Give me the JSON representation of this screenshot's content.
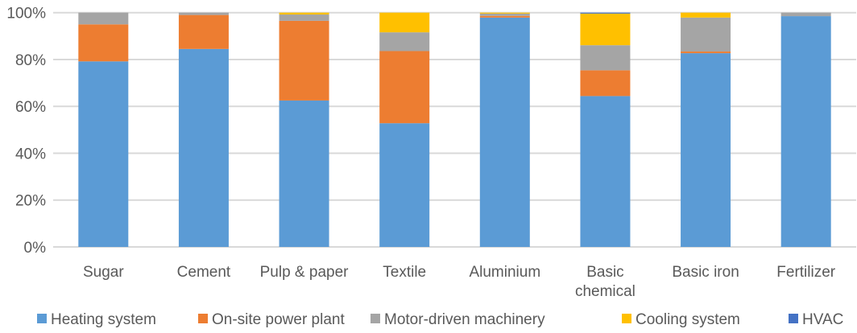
{
  "chart_data": {
    "type": "bar",
    "stacked": true,
    "percent": true,
    "categories": [
      "Sugar",
      "Cement",
      "Pulp & paper",
      "Textile",
      "Aluminium",
      "Basic chemical",
      "Basic iron",
      "Fertilizer"
    ],
    "category_lines": [
      [
        "Sugar"
      ],
      [
        "Cement"
      ],
      [
        "Pulp & paper"
      ],
      [
        "Textile"
      ],
      [
        "Aluminium"
      ],
      [
        "Basic",
        "chemical"
      ],
      [
        "Basic iron"
      ],
      [
        "Fertilizer"
      ]
    ],
    "series": [
      {
        "name": "Heating system",
        "color": "#5B9BD5",
        "values": [
          79.2,
          84.5,
          62.5,
          52.8,
          97.9,
          64.4,
          82.7,
          98.5
        ]
      },
      {
        "name": "On-site power plant",
        "color": "#ED7D31",
        "values": [
          15.8,
          14.5,
          34.0,
          30.8,
          0.7,
          11.0,
          0.7,
          0.0
        ]
      },
      {
        "name": "Motor-driven machinery",
        "color": "#A5A5A5",
        "values": [
          5.0,
          1.0,
          2.7,
          8.0,
          1.0,
          10.7,
          14.5,
          1.5
        ]
      },
      {
        "name": "Cooling system",
        "color": "#FFC000",
        "values": [
          0.0,
          0.0,
          0.8,
          8.4,
          0.4,
          13.5,
          2.1,
          0.0
        ]
      },
      {
        "name": "HVAC",
        "color": "#4472C4",
        "values": [
          0.0,
          0.0,
          0.0,
          0.0,
          0.0,
          0.4,
          0.0,
          0.0
        ]
      }
    ],
    "ylim": [
      0,
      100
    ],
    "yticks": [
      "0%",
      "20%",
      "40%",
      "60%",
      "80%",
      "100%"
    ],
    "ytick_values": [
      0,
      20,
      40,
      60,
      80,
      100
    ],
    "grid": true,
    "legend": "bottom"
  }
}
